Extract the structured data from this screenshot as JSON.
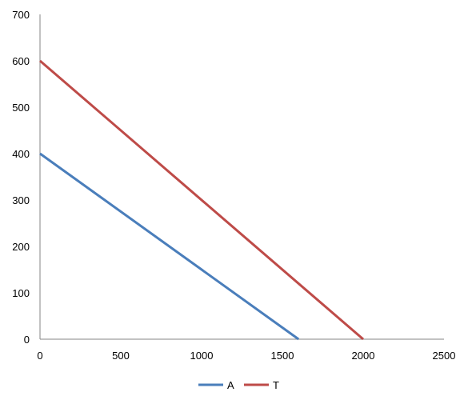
{
  "chart_data": {
    "type": "line",
    "title": "",
    "xlabel": "",
    "ylabel": "",
    "xlim": [
      0,
      2500
    ],
    "ylim": [
      0,
      700
    ],
    "x_ticks": [
      0,
      500,
      1000,
      1500,
      2000,
      2500
    ],
    "y_ticks": [
      0,
      100,
      200,
      300,
      400,
      500,
      600,
      700
    ],
    "grid": false,
    "legend_position": "bottom",
    "series": [
      {
        "name": "A",
        "color": "#4a7ebb",
        "x": [
          0,
          1600
        ],
        "y": [
          400,
          0
        ]
      },
      {
        "name": "T",
        "color": "#be4b48",
        "x": [
          0,
          2000
        ],
        "y": [
          600,
          0
        ]
      }
    ]
  }
}
